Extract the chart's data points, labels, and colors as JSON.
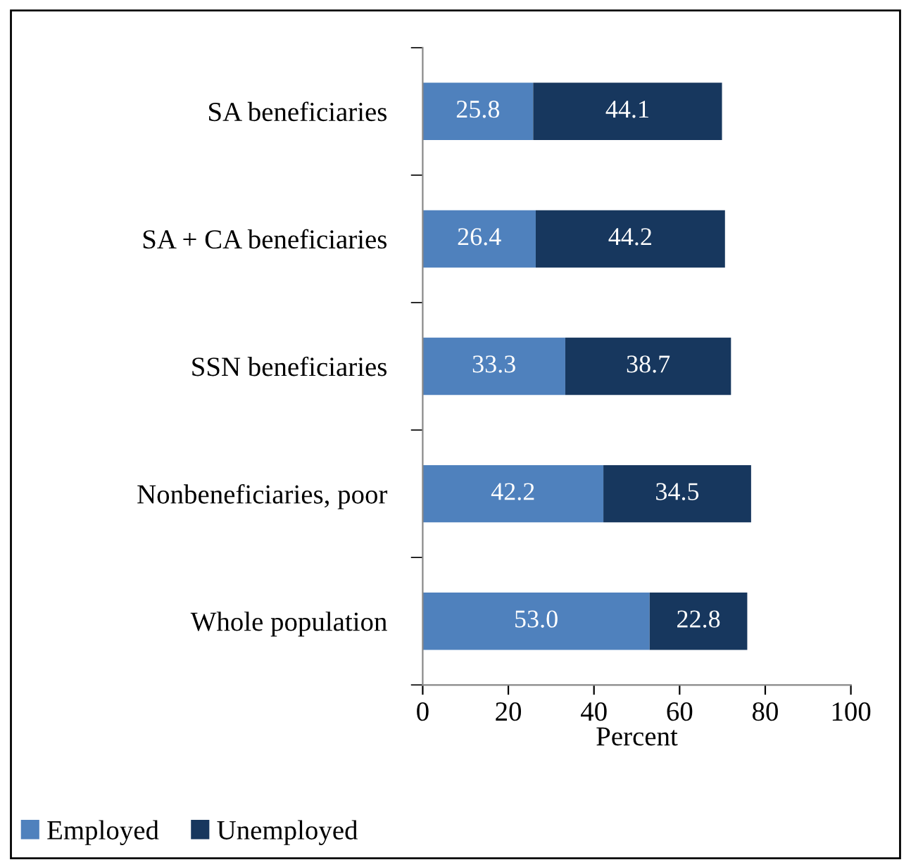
{
  "chart_data": {
    "type": "bar",
    "orientation": "horizontal",
    "stacked": true,
    "categories": [
      "SA beneficiaries",
      "SA + CA beneficiaries",
      "SSN beneficiaries",
      "Nonbeneficiaries, poor",
      "Whole population"
    ],
    "series": [
      {
        "name": "Employed",
        "color": "#4f81bd",
        "values": [
          25.8,
          26.4,
          33.3,
          42.2,
          53.0
        ],
        "value_labels": [
          "25.8",
          "26.4",
          "33.3",
          "42.2",
          "53.0"
        ]
      },
      {
        "name": "Unemployed",
        "color": "#17375e",
        "values": [
          44.1,
          44.2,
          38.7,
          34.5,
          22.8
        ],
        "value_labels": [
          "44.1",
          "44.2",
          "38.7",
          "34.5",
          "22.8"
        ]
      }
    ],
    "xlabel": "Percent",
    "xlim": [
      0,
      100
    ],
    "xticks": [
      0,
      20,
      40,
      60,
      80,
      100
    ],
    "grid": false,
    "legend": "bottom left"
  }
}
